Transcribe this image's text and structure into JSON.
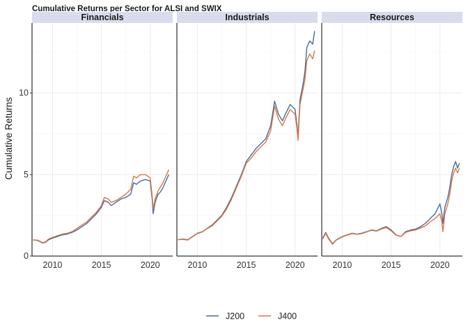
{
  "chart_data": {
    "type": "line",
    "title": "Cumulative Returns per Sector for ALSI and SWIX",
    "xlabel": "",
    "ylabel": "Cumulative Returns",
    "x_ticks": [
      2010,
      2015,
      2020
    ],
    "y_ticks": [
      0,
      5,
      10
    ],
    "xlim": [
      2007.9,
      2022.3
    ],
    "ylim": [
      0,
      14.3
    ],
    "grid": true,
    "legend_position": "bottom",
    "legend": [
      "J200",
      "J400"
    ],
    "colors": {
      "J200": "#4a6a9a",
      "J400": "#d2774a"
    },
    "panels": [
      {
        "name": "Financials",
        "series": [
          {
            "name": "J200",
            "x": [
              2008.0,
              2008.5,
              2009.0,
              2009.3,
              2009.6,
              2010.0,
              2010.5,
              2011.0,
              2011.5,
              2012.0,
              2012.5,
              2013.0,
              2013.5,
              2014.0,
              2014.5,
              2015.0,
              2015.3,
              2015.7,
              2016.0,
              2016.5,
              2017.0,
              2017.5,
              2018.0,
              2018.3,
              2018.6,
              2019.0,
              2019.5,
              2020.0,
              2020.2,
              2020.3,
              2020.5,
              2020.8,
              2021.0,
              2021.3,
              2021.6,
              2021.9
            ],
            "values": [
              1.0,
              0.95,
              0.8,
              0.85,
              1.0,
              1.1,
              1.2,
              1.3,
              1.35,
              1.45,
              1.6,
              1.8,
              2.0,
              2.3,
              2.6,
              3.0,
              3.4,
              3.3,
              3.1,
              3.3,
              3.5,
              3.6,
              3.8,
              4.5,
              4.4,
              4.6,
              4.7,
              4.6,
              3.5,
              2.6,
              3.3,
              3.8,
              3.9,
              4.2,
              4.6,
              5.0
            ]
          },
          {
            "name": "J400",
            "x": [
              2008.0,
              2008.5,
              2009.0,
              2009.3,
              2009.6,
              2010.0,
              2010.5,
              2011.0,
              2011.5,
              2012.0,
              2012.5,
              2013.0,
              2013.5,
              2014.0,
              2014.5,
              2015.0,
              2015.3,
              2015.7,
              2016.0,
              2016.5,
              2017.0,
              2017.5,
              2018.0,
              2018.3,
              2018.6,
              2019.0,
              2019.5,
              2020.0,
              2020.2,
              2020.3,
              2020.5,
              2020.8,
              2021.0,
              2021.3,
              2021.6,
              2021.9
            ],
            "values": [
              1.0,
              0.97,
              0.82,
              0.88,
              1.05,
              1.15,
              1.25,
              1.35,
              1.4,
              1.5,
              1.7,
              1.9,
              2.1,
              2.4,
              2.7,
              3.1,
              3.6,
              3.5,
              3.3,
              3.4,
              3.6,
              3.8,
              4.1,
              4.9,
              4.8,
              5.0,
              5.0,
              4.8,
              3.7,
              2.9,
              3.5,
              4.0,
              4.2,
              4.5,
              4.9,
              5.3
            ]
          }
        ]
      },
      {
        "name": "Industrials",
        "series": [
          {
            "name": "J200",
            "x": [
              2008.0,
              2008.5,
              2009.0,
              2009.5,
              2010.0,
              2010.5,
              2011.0,
              2011.5,
              2012.0,
              2012.5,
              2013.0,
              2013.5,
              2014.0,
              2014.5,
              2015.0,
              2015.5,
              2016.0,
              2016.5,
              2017.0,
              2017.5,
              2017.9,
              2018.3,
              2018.7,
              2019.0,
              2019.5,
              2020.0,
              2020.2,
              2020.3,
              2020.5,
              2020.8,
              2021.0,
              2021.2,
              2021.5,
              2021.8,
              2022.0
            ],
            "values": [
              1.0,
              1.05,
              1.0,
              1.2,
              1.4,
              1.5,
              1.7,
              1.9,
              2.2,
              2.5,
              3.0,
              3.6,
              4.3,
              5.0,
              5.8,
              6.2,
              6.6,
              6.9,
              7.2,
              8.0,
              9.5,
              8.7,
              8.3,
              8.7,
              9.3,
              9.0,
              8.0,
              7.3,
              9.6,
              10.5,
              11.3,
              12.8,
              13.2,
              13.0,
              13.8
            ]
          },
          {
            "name": "J400",
            "x": [
              2008.0,
              2008.5,
              2009.0,
              2009.5,
              2010.0,
              2010.5,
              2011.0,
              2011.5,
              2012.0,
              2012.5,
              2013.0,
              2013.5,
              2014.0,
              2014.5,
              2015.0,
              2015.5,
              2016.0,
              2016.5,
              2017.0,
              2017.5,
              2017.9,
              2018.3,
              2018.7,
              2019.0,
              2019.5,
              2020.0,
              2020.2,
              2020.3,
              2020.5,
              2020.8,
              2021.0,
              2021.2,
              2021.5,
              2021.8,
              2022.0
            ],
            "values": [
              1.0,
              1.03,
              0.98,
              1.18,
              1.38,
              1.48,
              1.68,
              1.85,
              2.15,
              2.45,
              2.9,
              3.5,
              4.2,
              4.9,
              5.7,
              6.0,
              6.4,
              6.7,
              7.0,
              7.7,
              9.2,
              8.4,
              8.0,
              8.4,
              9.0,
              8.7,
              7.8,
              7.1,
              9.3,
              10.2,
              10.8,
              12.0,
              12.4,
              12.1,
              12.6
            ]
          }
        ]
      },
      {
        "name": "Resources",
        "series": [
          {
            "name": "J200",
            "x": [
              2008.0,
              2008.3,
              2008.6,
              2009.0,
              2009.4,
              2010.0,
              2010.5,
              2011.0,
              2011.5,
              2012.0,
              2012.5,
              2013.0,
              2013.5,
              2014.0,
              2014.5,
              2015.0,
              2015.5,
              2016.0,
              2016.5,
              2017.0,
              2017.5,
              2018.0,
              2018.5,
              2019.0,
              2019.5,
              2020.0,
              2020.2,
              2020.3,
              2020.5,
              2020.8,
              2021.0,
              2021.2,
              2021.4,
              2021.6,
              2021.8,
              2022.0
            ],
            "values": [
              1.1,
              1.45,
              1.1,
              0.75,
              1.0,
              1.2,
              1.3,
              1.4,
              1.35,
              1.4,
              1.5,
              1.6,
              1.55,
              1.7,
              1.8,
              1.6,
              1.3,
              1.2,
              1.5,
              1.6,
              1.65,
              1.8,
              2.0,
              2.3,
              2.6,
              3.2,
              2.6,
              2.0,
              3.0,
              3.6,
              4.2,
              5.0,
              5.5,
              5.8,
              5.4,
              5.7
            ]
          },
          {
            "name": "J400",
            "x": [
              2008.0,
              2008.3,
              2008.6,
              2009.0,
              2009.4,
              2010.0,
              2010.5,
              2011.0,
              2011.5,
              2012.0,
              2012.5,
              2013.0,
              2013.5,
              2014.0,
              2014.5,
              2015.0,
              2015.5,
              2016.0,
              2016.5,
              2017.0,
              2017.5,
              2018.0,
              2018.5,
              2019.0,
              2019.5,
              2020.0,
              2020.2,
              2020.3,
              2020.5,
              2020.8,
              2021.0,
              2021.2,
              2021.4,
              2021.6,
              2021.8,
              2022.0
            ],
            "values": [
              1.05,
              1.4,
              1.05,
              0.72,
              0.98,
              1.18,
              1.28,
              1.38,
              1.33,
              1.38,
              1.48,
              1.58,
              1.53,
              1.66,
              1.75,
              1.55,
              1.28,
              1.2,
              1.45,
              1.55,
              1.6,
              1.72,
              1.85,
              2.1,
              2.3,
              2.6,
              2.1,
              1.5,
              2.6,
              3.2,
              3.8,
              4.6,
              5.1,
              5.4,
              5.1,
              5.4
            ]
          }
        ]
      }
    ]
  }
}
